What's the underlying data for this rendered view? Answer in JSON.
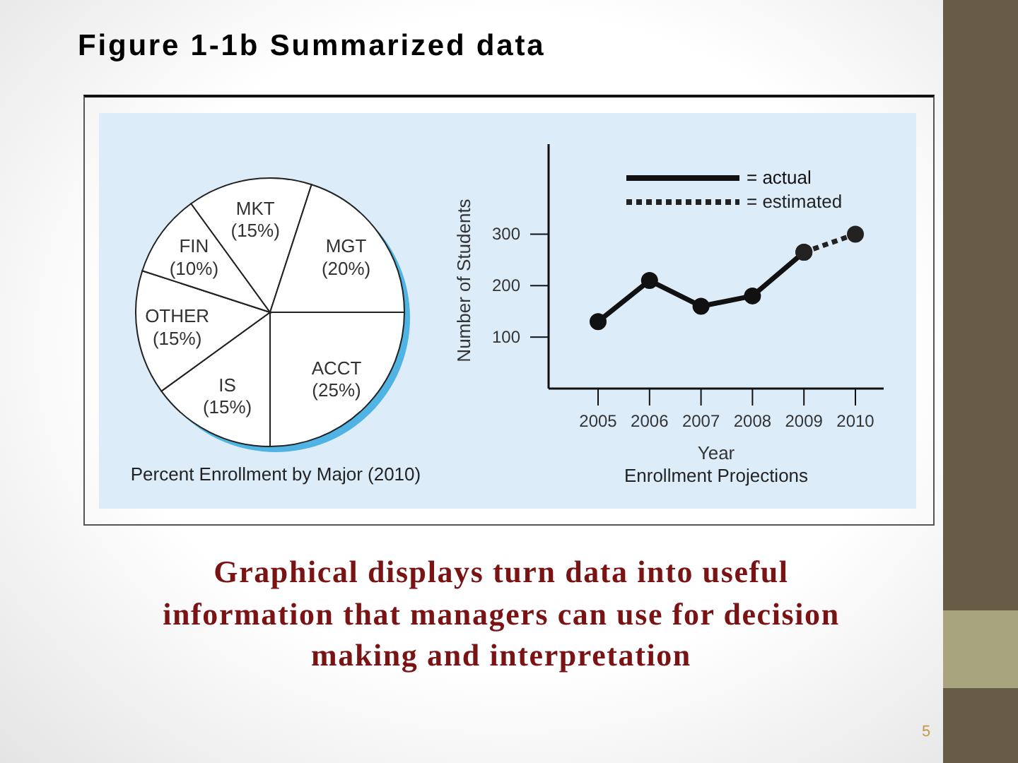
{
  "chart_data": [
    {
      "type": "other",
      "title": "Figure 1-1b Summarized data",
      "annotations": [
        "Graphical displays turn data into useful information that managers can use for decision making and interpretation",
        "5"
      ]
    },
    {
      "type": "pie",
      "title": "Percent Enrollment by Major (2010)",
      "categories": [
        "ACCT",
        "IS",
        "OTHER",
        "FIN",
        "MKT",
        "MGT"
      ],
      "values": [
        25,
        15,
        15,
        10,
        15,
        20
      ],
      "colors": [
        "#ffffff",
        "#ffffff",
        "#ffffff",
        "#ffffff",
        "#ffffff",
        "#ffffff"
      ],
      "value_labels": [
        "(25%)",
        "(15%)",
        "(15%)",
        "(10%)",
        "(15%)",
        "(20%)"
      ]
    },
    {
      "type": "line",
      "title": "Enrollment Projections",
      "xlabel": "Year",
      "ylabel": "Number of Students",
      "categories": [
        "2005",
        "2006",
        "2007",
        "2008",
        "2009",
        "2010"
      ],
      "series": [
        {
          "name": "= actual",
          "color": "#111111",
          "line_style": "solid",
          "values": [
            130,
            210,
            160,
            180,
            265,
            null
          ]
        },
        {
          "name": "= estimated",
          "color": "#222222",
          "line_style": "dotted",
          "values": [
            null,
            null,
            null,
            null,
            265,
            300
          ]
        }
      ],
      "ylim": [
        0,
        475
      ],
      "yticks": [
        100,
        200,
        300
      ],
      "legend": "top",
      "marker": "circle"
    }
  ]
}
